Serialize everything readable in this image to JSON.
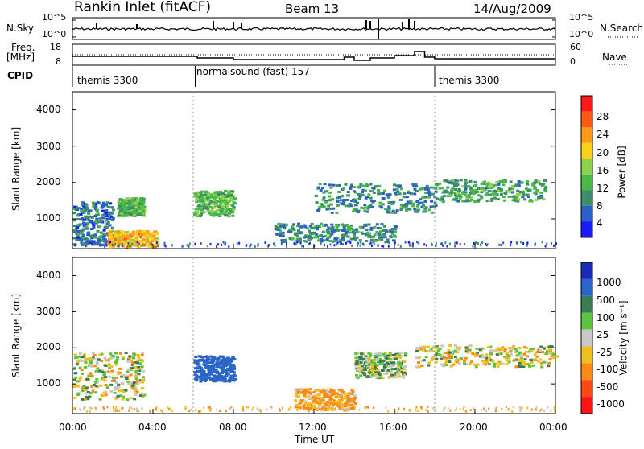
{
  "header": {
    "station": "Rankin Inlet (fitACF)",
    "beam": "Beam 13",
    "date": "14/Aug/2009"
  },
  "noise_panel": {
    "left_label": "N.Sky",
    "right_label": "N.Search",
    "left_ticks": [
      "10^5",
      "10^0"
    ],
    "right_ticks": [
      "10^5",
      "10^0"
    ]
  },
  "freq_panel": {
    "left_label_1": "Freq.",
    "left_label_2": "[MHz]",
    "right_label": "Nave",
    "left_ticks": [
      "18",
      "8"
    ],
    "right_ticks": [
      "60",
      "0"
    ]
  },
  "cpid": {
    "label": "CPID",
    "segments": [
      {
        "name": "themis 3300",
        "start_h": 0,
        "end_h": 6.1
      },
      {
        "name": "normalsound (fast) 157",
        "start_h": 6.1,
        "end_h": 18.0
      },
      {
        "name": "themis 3300",
        "start_h": 18.0,
        "end_h": 24
      }
    ]
  },
  "power_panel": {
    "ylabel": "Slant Range [km]",
    "y_ticks": [
      "4000",
      "3000",
      "2000",
      "1000"
    ],
    "colorbar_label": "Power [dB]",
    "colorbar_ticks": [
      "28",
      "24",
      "20",
      "16",
      "12",
      "8",
      "4"
    ],
    "colors": [
      "#1a1aff",
      "#2d5fc8",
      "#3a8f6a",
      "#48b848",
      "#8cd24a",
      "#ffd11a",
      "#ff9a1a",
      "#ff5a14",
      "#ff1a1a"
    ]
  },
  "velocity_panel": {
    "ylabel": "Slant Range [km]",
    "y_ticks": [
      "4000",
      "3000",
      "2000",
      "1000"
    ],
    "colorbar_label": "Velocity [m s⁻¹]",
    "colorbar_ticks": [
      "1000",
      "500",
      "100",
      "25",
      "-25",
      "-100",
      "-500",
      "-1000"
    ],
    "colors": [
      "#1a2ab8",
      "#2a66c8",
      "#3a7a54",
      "#5cc43c",
      "#c8c8c8",
      "#f0c020",
      "#ff8a14",
      "#ff4a14",
      "#ff1414"
    ]
  },
  "x_axis": {
    "label": "Time UT",
    "ticks": [
      "00:00",
      "04:00",
      "08:00",
      "12:00",
      "16:00",
      "20:00",
      "00:00"
    ]
  },
  "chart_data": {
    "type": "heatmap",
    "title": "Rankin Inlet (fitACF)",
    "xlabel": "Time UT",
    "ylabel": "Slant Range [km]",
    "xlim": [
      0,
      24
    ],
    "ylim": [
      180,
      4500
    ],
    "power_echo_regions": [
      {
        "t": [
          0.0,
          2.0
        ],
        "r": [
          300,
          1500
        ],
        "power_db": 8
      },
      {
        "t": [
          1.7,
          4.2
        ],
        "r": [
          250,
          700
        ],
        "power_db": 24
      },
      {
        "t": [
          2.2,
          3.5
        ],
        "r": [
          1100,
          1600
        ],
        "power_db": 14
      },
      {
        "t": [
          6.0,
          8.0
        ],
        "r": [
          1100,
          1800
        ],
        "power_db": 14
      },
      {
        "t": [
          10.0,
          16.0
        ],
        "r": [
          400,
          900
        ],
        "power_db": 10
      },
      {
        "t": [
          12.0,
          18.0
        ],
        "r": [
          1200,
          2000
        ],
        "power_db": 10
      },
      {
        "t": [
          18.0,
          23.5
        ],
        "r": [
          1500,
          2100
        ],
        "power_db": 12
      }
    ],
    "velocity_echo_regions": [
      {
        "t": [
          0.0,
          3.5
        ],
        "r": [
          600,
          1900
        ],
        "velocity": 0
      },
      {
        "t": [
          6.0,
          8.0
        ],
        "r": [
          1100,
          1800
        ],
        "velocity": 700
      },
      {
        "t": [
          11.0,
          14.0
        ],
        "r": [
          300,
          900
        ],
        "velocity": -150
      },
      {
        "t": [
          14.0,
          16.5
        ],
        "r": [
          1200,
          1900
        ],
        "velocity": 60
      },
      {
        "t": [
          17.0,
          24.0
        ],
        "r": [
          1500,
          2100
        ],
        "velocity": 0
      }
    ]
  }
}
